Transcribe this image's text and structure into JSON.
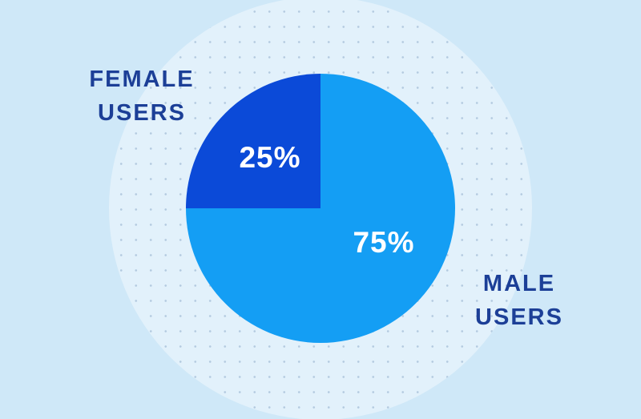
{
  "chart_data": {
    "type": "pie",
    "title": "",
    "legend_position": "none",
    "start_angle_deg": 0,
    "slices": [
      {
        "label": "MALE USERS",
        "value": 75,
        "pct_label": "75%",
        "color": "#149ef4"
      },
      {
        "label": "FEMALE USERS",
        "value": 25,
        "pct_label": "25%",
        "color": "#0b4ad8"
      }
    ],
    "annotations": [
      {
        "text": "FEMALE USERS",
        "position": "top-left"
      },
      {
        "text": "MALE USERS",
        "position": "bottom-right"
      }
    ]
  },
  "labels": {
    "female_line1": "FEMALE",
    "female_line2": "USERS",
    "male_line1": "MALE",
    "male_line2": "USERS",
    "female_pct": "25%",
    "male_pct": "75%"
  },
  "colors": {
    "background": "#cfe8f8",
    "halo": "#e2f1fb",
    "dot": "#b4cbe0",
    "male_slice": "#149ef4",
    "female_slice": "#0b4ad8",
    "label_text": "#1c3f97",
    "pct_text": "#ffffff"
  }
}
